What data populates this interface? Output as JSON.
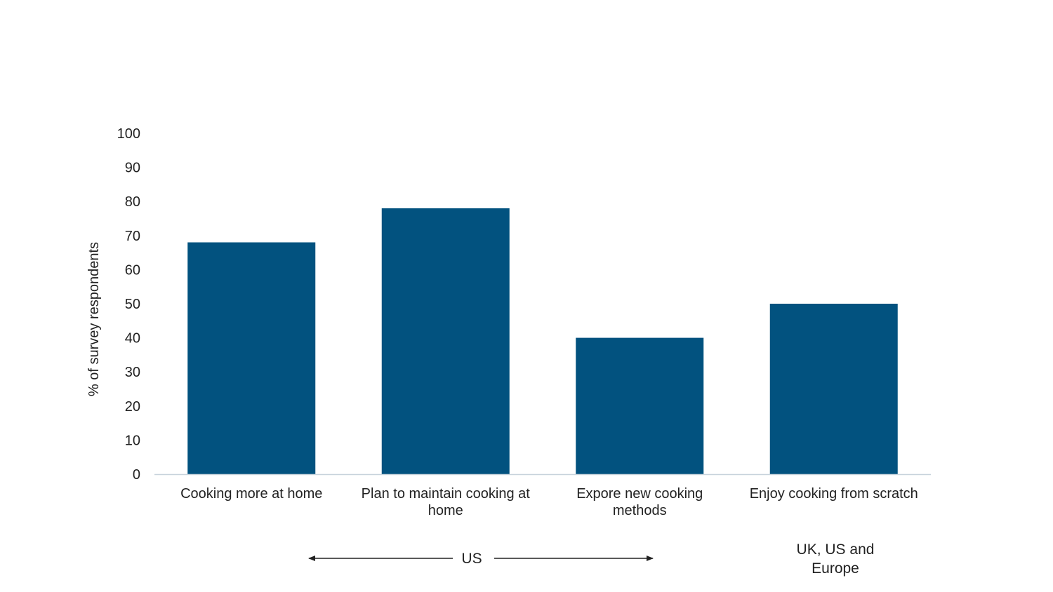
{
  "chart_data": {
    "type": "bar",
    "title": "",
    "xlabel": "",
    "ylabel": "% of survey respondents",
    "ylim": [
      0,
      100
    ],
    "yticks": [
      0,
      10,
      20,
      30,
      40,
      50,
      60,
      70,
      80,
      90,
      100
    ],
    "grid": false,
    "legend": "none",
    "categories": [
      [
        "Cooking more at home"
      ],
      [
        "Plan to maintain cooking at",
        "home"
      ],
      [
        "Expore new cooking",
        "methods"
      ],
      [
        "Enjoy cooking from scratch"
      ]
    ],
    "values": [
      68,
      78,
      40,
      50
    ],
    "bar_color": "#02527f",
    "axis_color": "#c8d3dc",
    "groups": [
      {
        "label": [
          "US"
        ],
        "from_category": 0,
        "to_category": 2,
        "arrows": true
      },
      {
        "label": [
          "UK, US and",
          "Europe"
        ],
        "from_category": 3,
        "to_category": 3,
        "arrows": false
      }
    ]
  }
}
